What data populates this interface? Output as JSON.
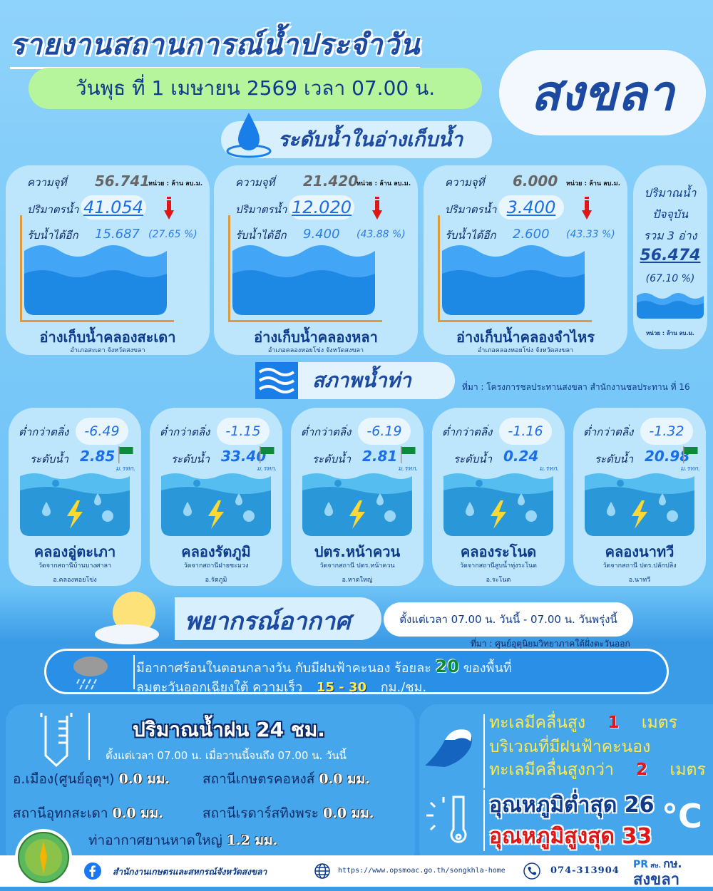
{
  "header": {
    "title": "รายงานสถานการณ์น้ำประจำวัน",
    "date": "วันพุธ ที่ 1 เมษายน 2569 เวลา 07.00 น.",
    "province": "สงขลา"
  },
  "reservoir_section": {
    "title": "ระดับน้ำในอ่างเก็บน้ำ",
    "labels": {
      "capacity": "ความจุที่",
      "volume": "ปริมาตรน้ำ",
      "remaining": "รับน้ำได้อีก",
      "unit": "หน่วย : ล้าน ลบ.ม."
    },
    "items": [
      {
        "capacity": "56.741",
        "volume": "41.054",
        "remaining": "15.687",
        "remaining_pct": "(27.65 %)",
        "trend": "down",
        "name": "อ่างเก็บน้ำคลองสะเดา",
        "location": "อำเภอสะเดา จังหวัดสงขลา"
      },
      {
        "capacity": "21.420",
        "volume": "12.020",
        "remaining": "9.400",
        "remaining_pct": "(43.88 %)",
        "trend": "down",
        "name": "อ่างเก็บน้ำคลองหลา",
        "location": "อำเภอคลองหอยโข่ง จังหวัดสงขลา"
      },
      {
        "capacity": "6.000",
        "volume": "3.400",
        "remaining": "2.600",
        "remaining_pct": "(43.33 %)",
        "trend": "down",
        "name": "อ่างเก็บน้ำคลองจำไหร",
        "location": "อำเภอคลองหอยโข่ง จังหวัดสงขลา"
      }
    ],
    "summary": {
      "line1": "ปริมาณน้ำ",
      "line2": "ปัจจุบัน",
      "line3": "รวม 3 อ่าง",
      "total": "56.474",
      "pct": "(67.10  %)",
      "unit": "หน่วย : ล้าน ลบ.ม."
    }
  },
  "station_section": {
    "title": "สภาพน้ำท่า",
    "source": "ที่มา : โครงการชลประทานสงขลา สำนักงานชลประทาน ที่ 16",
    "labels": {
      "below_bank": "ต่ำกว่าตลิ่ง",
      "level": "ระดับน้ำ",
      "unit": "ม.รทก."
    },
    "items": [
      {
        "below_bank": "-6.49",
        "level": "2.85",
        "flag": "green",
        "name": "คลองอู่ตะเภา",
        "station": "วัดจากสถานีบ้านบางศาลา",
        "district": "อ.คลองหอยโข่ง"
      },
      {
        "below_bank": "-1.15",
        "level": "33.40",
        "flag": "green",
        "name": "คลองรัตภูมิ",
        "station": "วัดจากสถานีฝายชะมวง",
        "district": "อ.รัตภูมิ"
      },
      {
        "below_bank": "-6.19",
        "level": "2.81",
        "flag": "green",
        "name": "ปตร.หน้าควน",
        "station": "วัดจากสถานี ปตร.หน้าควน",
        "district": "อ.หาดใหญ่"
      },
      {
        "below_bank": "-1.16",
        "level": "0.24",
        "flag": "none",
        "name": "คลองระโนด",
        "station": "วัดจากสถานีสูบน้ำทุ่งระโนด",
        "district": "อ.ระโนด"
      },
      {
        "below_bank": "-1.32",
        "level": "20.98",
        "flag": "green",
        "name": "คลองนาทวี",
        "station": "วัดจากสถานี ปตร.ปลักปลิง",
        "district": "อ.นาทวี"
      }
    ]
  },
  "weather": {
    "title": "พยากรณ์อากาศ",
    "period": "ตั้งแต่เวลา 07.00 น. วันนี้ - 07.00 น. วันพรุ่งนี้",
    "source": "ที่มา : ศูนย์อุตุนิยมวิทยาภาคใต้ฝั่งตะวันออก",
    "line1_a": "มีอากาศร้อนในตอนกลางวัน  กับมีฝนฟ้าคะนอง ร้อยละ",
    "rain_pct": "20",
    "line1_b": "ของพื้นที่",
    "line2_a": "ลมตะวันออกเฉียงใต้ ความเร็ว",
    "wind": "15 - 30",
    "wind_unit": "กม./ชม."
  },
  "rainfall": {
    "title": "ปริมาณน้ำฝน  24 ชม.",
    "period": "ตั้งแต่เวลา 07.00 น. เมื่อวานนี้จนถึง 07.00 น. วันนี้",
    "stations": [
      {
        "name": "อ.เมือง(ศูนย์อุตุฯ)",
        "value": "0.0 มม."
      },
      {
        "name": "สถานีเกษตรคอหงส์",
        "value": "0.0 มม."
      },
      {
        "name": "สถานีอุทกสะเดา",
        "value": "0.0 มม."
      },
      {
        "name": "สถานีเรดาร์สทิงพระ",
        "value": "0.0 มม."
      },
      {
        "name": "ท่าอากาศยานหาดใหญ่",
        "value": "1.2 มม."
      }
    ]
  },
  "sea": {
    "l1_a": "ทะเลมีคลื่นสูง",
    "l1_v": "1",
    "l1_u": "เมตร",
    "l2": "บริเวณที่มีฝนฟ้าคะนอง",
    "l3_a": "ทะเลมีคลื่นสูงกว่า",
    "l3_v": "2",
    "l3_u": "เมตร"
  },
  "temperature": {
    "min_label": "อุณหภูมิต่ำสุด",
    "min": "26",
    "max_label": "อุณหภูมิสูงสุด",
    "max": "33",
    "unit": "°C"
  },
  "footer": {
    "facebook": "สำนักงานเกษตรและสหกรณ์จังหวัดสงขลา",
    "website": "https://www.opsmoac.go.th/songkhla-home",
    "phone": "074-313904",
    "logo_text": "PR สษ. กษ. สงขลา"
  },
  "colors": {
    "title": "#1b4aa0",
    "card": "#bde6fd",
    "date_pill": "#b6f59c",
    "accent_blue": "#1a6ee8",
    "flag_green": "#0a8a3a",
    "trend_down": "#e01515"
  }
}
